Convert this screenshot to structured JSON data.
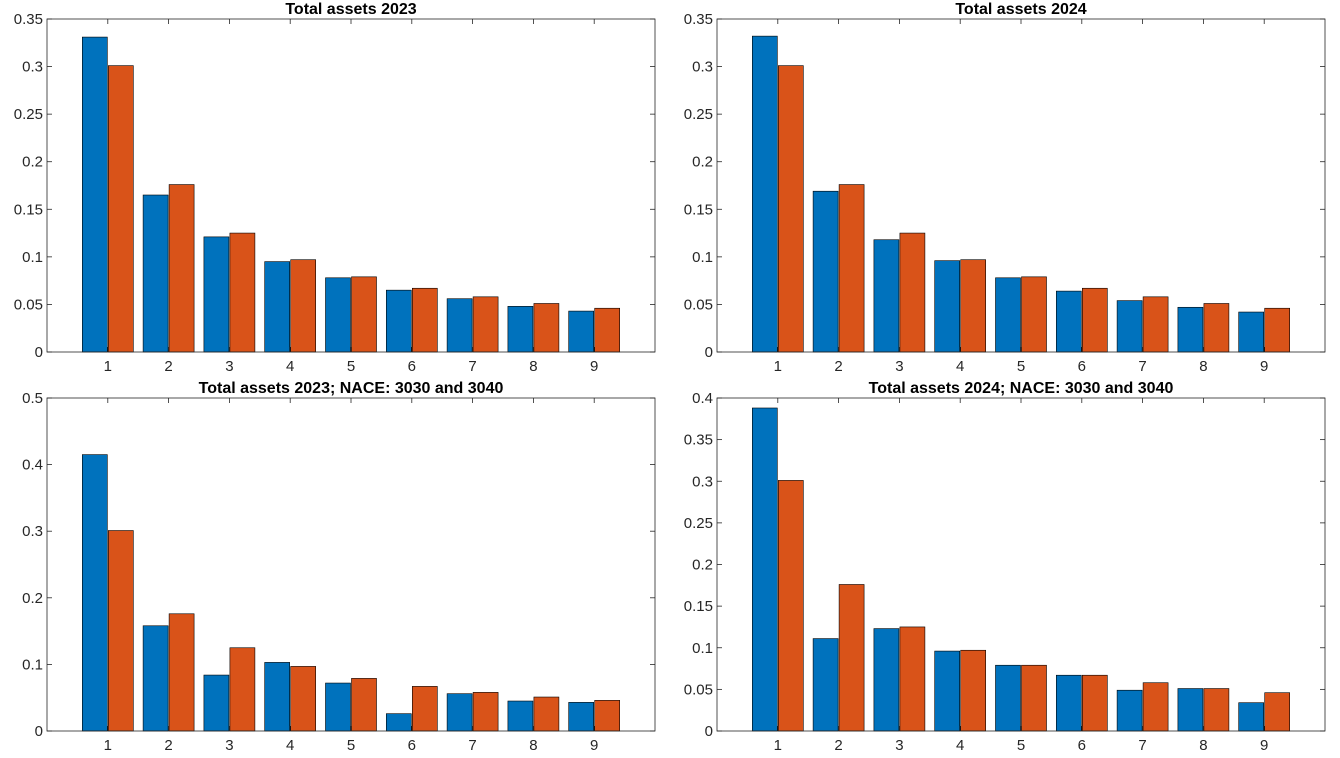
{
  "colors": {
    "series_a": "#0072BD",
    "series_b": "#D95319",
    "axes": "#262626",
    "bar_edge": "#000000"
  },
  "chart_data": [
    {
      "type": "bar",
      "title": "Total assets 2023",
      "categories": [
        "1",
        "2",
        "3",
        "4",
        "5",
        "6",
        "7",
        "8",
        "9"
      ],
      "ylim": [
        0,
        0.35
      ],
      "yticks": [
        "0",
        "0.05",
        "0.1",
        "0.15",
        "0.2",
        "0.25",
        "0.3",
        "0.35"
      ],
      "ytick_values": [
        0,
        0.05,
        0.1,
        0.15,
        0.2,
        0.25,
        0.3,
        0.35
      ],
      "grid": false,
      "series": [
        {
          "values": [
            0.331,
            0.165,
            0.121,
            0.095,
            0.078,
            0.065,
            0.056,
            0.048,
            0.043
          ]
        },
        {
          "values": [
            0.301,
            0.176,
            0.125,
            0.097,
            0.079,
            0.067,
            0.058,
            0.051,
            0.046
          ]
        }
      ]
    },
    {
      "type": "bar",
      "title": "Total assets 2024",
      "categories": [
        "1",
        "2",
        "3",
        "4",
        "5",
        "6",
        "7",
        "8",
        "9"
      ],
      "ylim": [
        0,
        0.35
      ],
      "yticks": [
        "0",
        "0.05",
        "0.1",
        "0.15",
        "0.2",
        "0.25",
        "0.3",
        "0.35"
      ],
      "ytick_values": [
        0,
        0.05,
        0.1,
        0.15,
        0.2,
        0.25,
        0.3,
        0.35
      ],
      "grid": false,
      "series": [
        {
          "values": [
            0.332,
            0.169,
            0.118,
            0.096,
            0.078,
            0.064,
            0.054,
            0.047,
            0.042
          ]
        },
        {
          "values": [
            0.301,
            0.176,
            0.125,
            0.097,
            0.079,
            0.067,
            0.058,
            0.051,
            0.046
          ]
        }
      ]
    },
    {
      "type": "bar",
      "title": "Total assets 2023; NACE: 3030 and 3040",
      "categories": [
        "1",
        "2",
        "3",
        "4",
        "5",
        "6",
        "7",
        "8",
        "9"
      ],
      "ylim": [
        0,
        0.5
      ],
      "yticks": [
        "0",
        "0.1",
        "0.2",
        "0.3",
        "0.4",
        "0.5"
      ],
      "ytick_values": [
        0,
        0.1,
        0.2,
        0.3,
        0.4,
        0.5
      ],
      "grid": false,
      "series": [
        {
          "values": [
            0.415,
            0.158,
            0.084,
            0.103,
            0.072,
            0.026,
            0.056,
            0.045,
            0.043
          ]
        },
        {
          "values": [
            0.301,
            0.176,
            0.125,
            0.097,
            0.079,
            0.067,
            0.058,
            0.051,
            0.046
          ]
        }
      ]
    },
    {
      "type": "bar",
      "title": "Total assets 2024; NACE: 3030 and 3040",
      "categories": [
        "1",
        "2",
        "3",
        "4",
        "5",
        "6",
        "7",
        "8",
        "9"
      ],
      "ylim": [
        0,
        0.4
      ],
      "yticks": [
        "0",
        "0.05",
        "0.1",
        "0.15",
        "0.2",
        "0.25",
        "0.3",
        "0.35",
        "0.4"
      ],
      "ytick_values": [
        0,
        0.05,
        0.1,
        0.15,
        0.2,
        0.25,
        0.3,
        0.35,
        0.4
      ],
      "grid": false,
      "series": [
        {
          "values": [
            0.388,
            0.111,
            0.123,
            0.096,
            0.079,
            0.067,
            0.049,
            0.051,
            0.034
          ]
        },
        {
          "values": [
            0.301,
            0.176,
            0.125,
            0.097,
            0.079,
            0.067,
            0.058,
            0.051,
            0.046
          ]
        }
      ]
    }
  ]
}
